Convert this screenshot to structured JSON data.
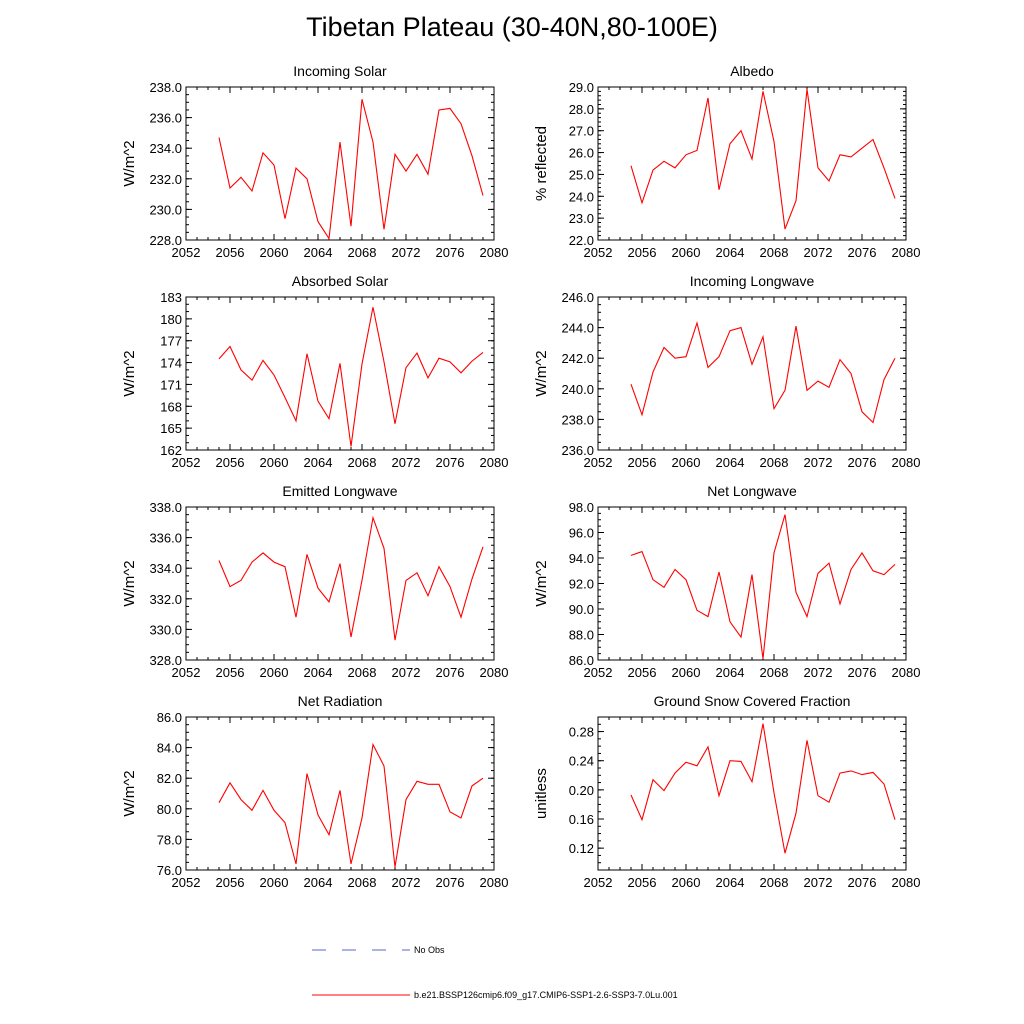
{
  "figure": {
    "title": "Tibetan Plateau (30-40N,80-100E)"
  },
  "chart_data": [
    {
      "type": "line",
      "title": "Incoming Solar",
      "ylabel": "W/m^2",
      "xlim": [
        2052,
        2080
      ],
      "ylim": [
        228,
        238
      ],
      "xticks": [
        2052,
        2056,
        2060,
        2064,
        2068,
        2072,
        2076,
        2080
      ],
      "yticks": [
        228.0,
        230.0,
        232.0,
        234.0,
        236.0,
        238.0
      ],
      "ytick_labels": [
        "228.0",
        "230.0",
        "232.0",
        "234.0",
        "236.0",
        "238.0"
      ],
      "y_minor": 0.5,
      "series": [
        {
          "color": "#ff0000",
          "x": [
            2055,
            2056,
            2057,
            2058,
            2059,
            2060,
            2061,
            2062,
            2063,
            2064,
            2065,
            2066,
            2067,
            2068,
            2069,
            2070,
            2071,
            2072,
            2073,
            2074,
            2075,
            2076,
            2077,
            2078,
            2079
          ],
          "values": [
            234.7,
            231.4,
            232.1,
            231.2,
            233.7,
            232.9,
            229.4,
            232.7,
            232.0,
            229.2,
            228.1,
            234.4,
            228.9,
            237.2,
            234.4,
            228.7,
            233.6,
            232.5,
            233.6,
            232.3,
            236.5,
            236.6,
            235.6,
            233.5,
            230.9
          ]
        }
      ]
    },
    {
      "type": "line",
      "title": "Albedo",
      "ylabel": "% reflected",
      "xlim": [
        2052,
        2080
      ],
      "ylim": [
        22,
        29
      ],
      "xticks": [
        2052,
        2056,
        2060,
        2064,
        2068,
        2072,
        2076,
        2080
      ],
      "yticks": [
        22,
        23,
        24,
        25,
        26,
        27,
        28,
        29
      ],
      "ytick_labels": [
        "22.0",
        "23.0",
        "24.0",
        "25.0",
        "26.0",
        "27.0",
        "28.0",
        "29.0"
      ],
      "y_minor": 0.2,
      "series": [
        {
          "color": "#ff0000",
          "x": [
            2055,
            2056,
            2057,
            2058,
            2059,
            2060,
            2061,
            2062,
            2063,
            2064,
            2065,
            2066,
            2067,
            2068,
            2069,
            2070,
            2071,
            2072,
            2073,
            2074,
            2075,
            2076,
            2077,
            2078,
            2079
          ],
          "values": [
            25.4,
            23.7,
            25.2,
            25.6,
            25.3,
            25.9,
            26.1,
            28.5,
            24.3,
            26.4,
            27.0,
            25.7,
            28.8,
            26.5,
            22.5,
            23.8,
            28.9,
            25.3,
            24.7,
            25.9,
            25.8,
            26.2,
            26.6,
            25.3,
            23.9
          ]
        }
      ]
    },
    {
      "type": "line",
      "title": "Absorbed Solar",
      "ylabel": "W/m^2",
      "xlim": [
        2052,
        2080
      ],
      "ylim": [
        162,
        183
      ],
      "xticks": [
        2052,
        2056,
        2060,
        2064,
        2068,
        2072,
        2076,
        2080
      ],
      "yticks": [
        162,
        165,
        168,
        171,
        174,
        177,
        180,
        183
      ],
      "ytick_labels": [
        "162",
        "165",
        "168",
        "171",
        "174",
        "177",
        "180",
        "183"
      ],
      "y_minor": 1,
      "series": [
        {
          "color": "#ff0000",
          "x": [
            2055,
            2056,
            2057,
            2058,
            2059,
            2060,
            2061,
            2062,
            2063,
            2064,
            2065,
            2066,
            2067,
            2068,
            2069,
            2070,
            2071,
            2072,
            2073,
            2074,
            2075,
            2076,
            2077,
            2078,
            2079
          ],
          "values": [
            174.5,
            176.2,
            173.0,
            171.6,
            174.3,
            172.3,
            169.2,
            166.0,
            175.2,
            168.7,
            166.3,
            173.9,
            162.5,
            173.8,
            181.6,
            174.1,
            165.6,
            173.3,
            175.3,
            171.9,
            174.6,
            174.1,
            172.6,
            174.2,
            175.4
          ]
        }
      ]
    },
    {
      "type": "line",
      "title": "Incoming Longwave",
      "ylabel": "W/m^2",
      "xlim": [
        2052,
        2080
      ],
      "ylim": [
        236,
        246
      ],
      "xticks": [
        2052,
        2056,
        2060,
        2064,
        2068,
        2072,
        2076,
        2080
      ],
      "yticks": [
        236,
        238,
        240,
        242,
        244,
        246
      ],
      "ytick_labels": [
        "236.0",
        "238.0",
        "240.0",
        "242.0",
        "244.0",
        "246.0"
      ],
      "y_minor": 0.5,
      "series": [
        {
          "color": "#ff0000",
          "x": [
            2055,
            2056,
            2057,
            2058,
            2059,
            2060,
            2061,
            2062,
            2063,
            2064,
            2065,
            2066,
            2067,
            2068,
            2069,
            2070,
            2071,
            2072,
            2073,
            2074,
            2075,
            2076,
            2077,
            2078,
            2079
          ],
          "values": [
            240.3,
            238.3,
            241.1,
            242.7,
            242.0,
            242.1,
            244.3,
            241.4,
            242.1,
            243.8,
            244.0,
            241.6,
            243.4,
            238.7,
            239.9,
            244.1,
            239.9,
            240.5,
            240.1,
            241.9,
            241.0,
            238.5,
            237.8,
            240.6,
            242.0
          ]
        }
      ]
    },
    {
      "type": "line",
      "title": "Emitted Longwave",
      "ylabel": "W/m^2",
      "xlim": [
        2052,
        2080
      ],
      "ylim": [
        328,
        338
      ],
      "xticks": [
        2052,
        2056,
        2060,
        2064,
        2068,
        2072,
        2076,
        2080
      ],
      "yticks": [
        328,
        330,
        332,
        334,
        336,
        338
      ],
      "ytick_labels": [
        "328.0",
        "330.0",
        "332.0",
        "334.0",
        "336.0",
        "338.0"
      ],
      "y_minor": 0.5,
      "series": [
        {
          "color": "#ff0000",
          "x": [
            2055,
            2056,
            2057,
            2058,
            2059,
            2060,
            2061,
            2062,
            2063,
            2064,
            2065,
            2066,
            2067,
            2068,
            2069,
            2070,
            2071,
            2072,
            2073,
            2074,
            2075,
            2076,
            2077,
            2078,
            2079
          ],
          "values": [
            334.5,
            332.8,
            333.2,
            334.4,
            335.0,
            334.4,
            334.1,
            330.8,
            334.9,
            332.7,
            331.8,
            334.3,
            329.5,
            333.2,
            337.3,
            335.3,
            329.3,
            333.2,
            333.7,
            332.2,
            334.1,
            332.8,
            330.8,
            333.3,
            335.4
          ]
        }
      ]
    },
    {
      "type": "line",
      "title": "Net Longwave",
      "ylabel": "W/m^2",
      "xlim": [
        2052,
        2080
      ],
      "ylim": [
        86,
        98
      ],
      "xticks": [
        2052,
        2056,
        2060,
        2064,
        2068,
        2072,
        2076,
        2080
      ],
      "yticks": [
        86,
        88,
        90,
        92,
        94,
        96,
        98
      ],
      "ytick_labels": [
        "86.0",
        "88.0",
        "90.0",
        "92.0",
        "94.0",
        "96.0",
        "98.0"
      ],
      "y_minor": 0.5,
      "series": [
        {
          "color": "#ff0000",
          "x": [
            2055,
            2056,
            2057,
            2058,
            2059,
            2060,
            2061,
            2062,
            2063,
            2064,
            2065,
            2066,
            2067,
            2068,
            2069,
            2070,
            2071,
            2072,
            2073,
            2074,
            2075,
            2076,
            2077,
            2078,
            2079
          ],
          "values": [
            94.2,
            94.5,
            92.3,
            91.7,
            93.1,
            92.3,
            89.9,
            89.4,
            92.9,
            89.0,
            87.8,
            92.7,
            86.1,
            94.4,
            97.4,
            91.3,
            89.4,
            92.8,
            93.6,
            90.4,
            93.1,
            94.4,
            93.0,
            92.7,
            93.5
          ]
        }
      ]
    },
    {
      "type": "line",
      "title": "Net Radiation",
      "ylabel": "W/m^2",
      "xlim": [
        2052,
        2080
      ],
      "ylim": [
        76,
        86
      ],
      "xticks": [
        2052,
        2056,
        2060,
        2064,
        2068,
        2072,
        2076,
        2080
      ],
      "yticks": [
        76,
        78,
        80,
        82,
        84,
        86
      ],
      "ytick_labels": [
        "76.0",
        "78.0",
        "80.0",
        "82.0",
        "84.0",
        "86.0"
      ],
      "y_minor": 0.5,
      "series": [
        {
          "color": "#ff0000",
          "x": [
            2055,
            2056,
            2057,
            2058,
            2059,
            2060,
            2061,
            2062,
            2063,
            2064,
            2065,
            2066,
            2067,
            2068,
            2069,
            2070,
            2071,
            2072,
            2073,
            2074,
            2075,
            2076,
            2077,
            2078,
            2079
          ],
          "values": [
            80.4,
            81.7,
            80.6,
            79.9,
            81.2,
            79.9,
            79.1,
            76.4,
            82.3,
            79.6,
            78.3,
            81.2,
            76.4,
            79.4,
            84.2,
            82.8,
            76.2,
            80.6,
            81.8,
            81.6,
            81.6,
            79.8,
            79.4,
            81.5,
            82.0
          ]
        }
      ]
    },
    {
      "type": "line",
      "title": "Ground Snow Covered Fraction",
      "ylabel": "unitless",
      "xlim": [
        2052,
        2080
      ],
      "ylim": [
        0.09,
        0.3
      ],
      "xticks": [
        2052,
        2056,
        2060,
        2064,
        2068,
        2072,
        2076,
        2080
      ],
      "yticks": [
        0.12,
        0.16,
        0.2,
        0.24,
        0.28
      ],
      "ytick_labels": [
        "0.12",
        "0.16",
        "0.20",
        "0.24",
        "0.28"
      ],
      "y_minor": 0.01,
      "series": [
        {
          "color": "#ff0000",
          "x": [
            2055,
            2056,
            2057,
            2058,
            2059,
            2060,
            2061,
            2062,
            2063,
            2064,
            2065,
            2066,
            2067,
            2068,
            2069,
            2070,
            2071,
            2072,
            2073,
            2074,
            2075,
            2076,
            2077,
            2078,
            2079
          ],
          "values": [
            0.193,
            0.159,
            0.214,
            0.199,
            0.223,
            0.238,
            0.233,
            0.259,
            0.192,
            0.24,
            0.239,
            0.211,
            0.291,
            0.196,
            0.113,
            0.168,
            0.268,
            0.192,
            0.183,
            0.223,
            0.226,
            0.221,
            0.224,
            0.208,
            0.159
          ]
        }
      ]
    }
  ],
  "legend": {
    "items": [
      {
        "label": "No Obs",
        "color": "#5566cc",
        "style": "dashed"
      },
      {
        "label": "b.e21.BSSP126cmip6.f09_g17.CMIP6-SSP1-2.6-SSP3-7.0Lu.001",
        "color": "#ff0000",
        "style": "solid"
      }
    ]
  }
}
